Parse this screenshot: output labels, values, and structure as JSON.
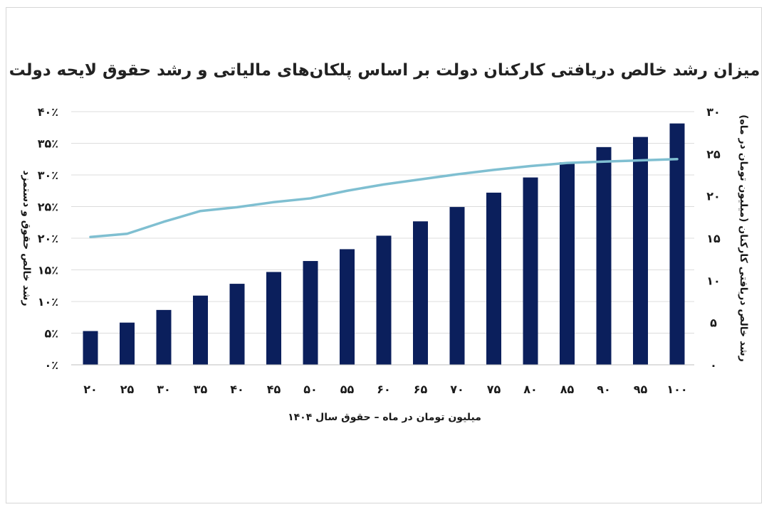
{
  "chart_data": {
    "type": "bar",
    "title": "میزان رشد خالص دریافتی کارکنان دولت بر اساس پلکان‌های مالیاتی و رشد حقوق لایحه دولت",
    "xlabel": "میلیون تومان در ماه – حقوق سال ۱۴۰۴",
    "ylabel_left": "رشد خالص حقوق و دستمزد",
    "ylabel_right": "رشد خالص دریافتی کارکنان (میلیون تومان در ماه)",
    "categories": [
      "۲۰",
      "۲۵",
      "۳۰",
      "۳۵",
      "۴۰",
      "۴۵",
      "۵۰",
      "۵۵",
      "۶۰",
      "۶۵",
      "۷۰",
      "۷۵",
      "۸۰",
      "۸۵",
      "۹۰",
      "۹۵",
      "۱۰۰"
    ],
    "x_values": [
      20,
      25,
      30,
      35,
      40,
      45,
      50,
      55,
      60,
      65,
      70,
      75,
      80,
      85,
      90,
      95,
      100
    ],
    "left_ticks": [
      "۰٪",
      "۵٪",
      "۱۰٪",
      "۱۵٪",
      "۲۰٪",
      "۲۵٪",
      "۳۰٪",
      "۳۵٪",
      "۴۰٪"
    ],
    "right_ticks": [
      "۰",
      "۵",
      "۱۰",
      "۱۵",
      "۲۰",
      "۲۵",
      "۳۰"
    ],
    "ylim_left": [
      0,
      40
    ],
    "ylim_right": [
      0,
      30
    ],
    "grid": true,
    "series": [
      {
        "type": "bar",
        "axis": "right",
        "color": "#0b1f5c",
        "values": [
          4.0,
          5.0,
          6.5,
          8.2,
          9.6,
          11.0,
          12.3,
          13.7,
          15.3,
          17.0,
          18.7,
          20.4,
          22.2,
          24.0,
          25.8,
          27.0,
          28.6
        ]
      },
      {
        "type": "line",
        "axis": "left",
        "color": "#7fbfd1",
        "values": [
          20.2,
          20.7,
          22.6,
          24.3,
          24.9,
          25.7,
          26.3,
          27.5,
          28.5,
          29.3,
          30.1,
          30.8,
          31.4,
          31.9,
          32.1,
          32.3,
          32.5
        ]
      }
    ]
  }
}
